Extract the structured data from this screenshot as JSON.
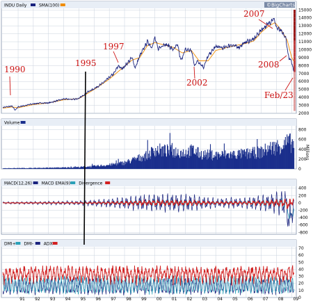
{
  "brand": "©BigCharts",
  "colors": {
    "panel_bg": "#ffffff",
    "header_bg": "#e8eef6",
    "grid": "#c8d2de",
    "price_line": "#1a237e",
    "ma_line": "#f08c00",
    "volume": "#1a2f8c",
    "macd_line": "#1a237e",
    "macd_ema": "#2aa0b8",
    "divergence": "#d22020",
    "dmi_plus": "#2aa0b8",
    "dmi_minus": "#1a237e",
    "adx": "#d22020",
    "annotation": "#cc1111",
    "marker": "#000000"
  },
  "chart_data": [
    {
      "type": "line",
      "legend": [
        "INDU Daily",
        "SMA(100)"
      ],
      "x_ticks": [
        "91",
        "92",
        "93",
        "94",
        "95",
        "96",
        "97",
        "98",
        "99",
        "00",
        "01",
        "02",
        "03",
        "04",
        "05",
        "06",
        "07",
        "08",
        "09"
      ],
      "yticks": [
        2000,
        3000,
        4000,
        5000,
        6000,
        7000,
        8000,
        9000,
        10000,
        11000,
        12000,
        13000,
        14000,
        15000
      ],
      "ylim": [
        2000,
        15200
      ],
      "xlim": [
        1989.9,
        2009.3
      ],
      "series": [
        {
          "name": "INDU Daily",
          "x": [
            1990.0,
            1990.6,
            1990.8,
            1991.0,
            1991.5,
            1992.0,
            1992.5,
            1993.0,
            1993.5,
            1994.0,
            1994.5,
            1995.0,
            1995.5,
            1996.0,
            1996.5,
            1997.0,
            1997.3,
            1997.6,
            1997.8,
            1998.0,
            1998.5,
            1998.7,
            1999.0,
            1999.5,
            1999.8,
            2000.0,
            2000.2,
            2000.6,
            2000.9,
            2001.2,
            2001.5,
            2001.7,
            2002.0,
            2002.4,
            2002.6,
            2002.8,
            2003.2,
            2003.5,
            2004.0,
            2004.5,
            2005.0,
            2005.5,
            2006.0,
            2006.5,
            2007.0,
            2007.5,
            2007.8,
            2008.0,
            2008.3,
            2008.6,
            2008.8,
            2009.0,
            2009.15
          ],
          "values": [
            2750,
            2900,
            2400,
            2800,
            3000,
            3200,
            3300,
            3300,
            3550,
            3800,
            3750,
            3850,
            4600,
            5100,
            5700,
            6500,
            7000,
            8000,
            7600,
            7900,
            9000,
            7700,
            9200,
            11000,
            10300,
            11500,
            10100,
            10700,
            10500,
            10000,
            10600,
            8600,
            10000,
            9900,
            8000,
            8600,
            7800,
            9200,
            10400,
            10200,
            10600,
            10300,
            11000,
            11300,
            12500,
            13300,
            14000,
            12800,
            12300,
            11500,
            9000,
            8400,
            7100
          ]
        },
        {
          "name": "SMA(100)",
          "x": [
            1990.0,
            1990.6,
            1991.0,
            1992.0,
            1993.0,
            1994.0,
            1995.0,
            1996.0,
            1997.0,
            1997.8,
            1998.5,
            1999.0,
            1999.5,
            2000.0,
            2000.6,
            2001.2,
            2001.8,
            2002.4,
            2002.9,
            2003.5,
            2004.0,
            2005.0,
            2006.0,
            2006.5,
            2007.0,
            2007.5,
            2007.9,
            2008.3,
            2008.7,
            2009.0,
            2009.15
          ],
          "values": [
            2650,
            2800,
            2700,
            3100,
            3300,
            3700,
            3850,
            5000,
            6300,
            7600,
            8700,
            9000,
            10500,
            10900,
            10600,
            10300,
            9600,
            9900,
            8600,
            8600,
            9900,
            10400,
            10800,
            11100,
            12200,
            13000,
            13400,
            12500,
            11200,
            9000,
            8500
          ]
        }
      ],
      "annotations": [
        "1990",
        "1995",
        "1997",
        "2002",
        "2007",
        "2008",
        "Feb/23"
      ]
    },
    {
      "type": "bar",
      "legend": [
        "Volume"
      ],
      "yticks": [
        0,
        200,
        400,
        600,
        800
      ],
      "ylim": [
        0,
        880
      ],
      "unit_label": "Millions",
      "profile_x": [
        1990.0,
        1991.0,
        1992.0,
        1993.0,
        1994.0,
        1995.0,
        1996.0,
        1997.0,
        1998.0,
        1999.0,
        1999.6,
        2000.0,
        2001.0,
        2002.0,
        2002.5,
        2003.0,
        2004.0,
        2005.0,
        2006.0,
        2007.0,
        2007.5,
        2008.0,
        2008.8,
        2009.15
      ],
      "profile_values": [
        15,
        18,
        20,
        25,
        30,
        40,
        60,
        90,
        140,
        250,
        330,
        430,
        400,
        370,
        420,
        330,
        310,
        320,
        340,
        380,
        460,
        500,
        600,
        560
      ]
    },
    {
      "type": "line",
      "legend": [
        "MACD(12,26)",
        "MACD EMA(9)",
        "Divergence"
      ],
      "yticks": [
        -800,
        -600,
        -400,
        -200,
        0,
        200,
        400
      ],
      "ylim": [
        -850,
        450
      ],
      "amplitude_x": [
        1990,
        1995,
        1997,
        1999,
        2002,
        2004,
        2006,
        2007.5,
        2008.8,
        2009.15
      ],
      "amplitude_values": [
        30,
        60,
        120,
        220,
        260,
        130,
        160,
        240,
        420,
        300
      ]
    },
    {
      "type": "line",
      "legend": [
        "DMI+",
        "DMI-",
        "ADX"
      ],
      "yticks": [
        0,
        10,
        20,
        30,
        40,
        50,
        60,
        70
      ],
      "ylim": [
        0,
        72
      ]
    }
  ]
}
